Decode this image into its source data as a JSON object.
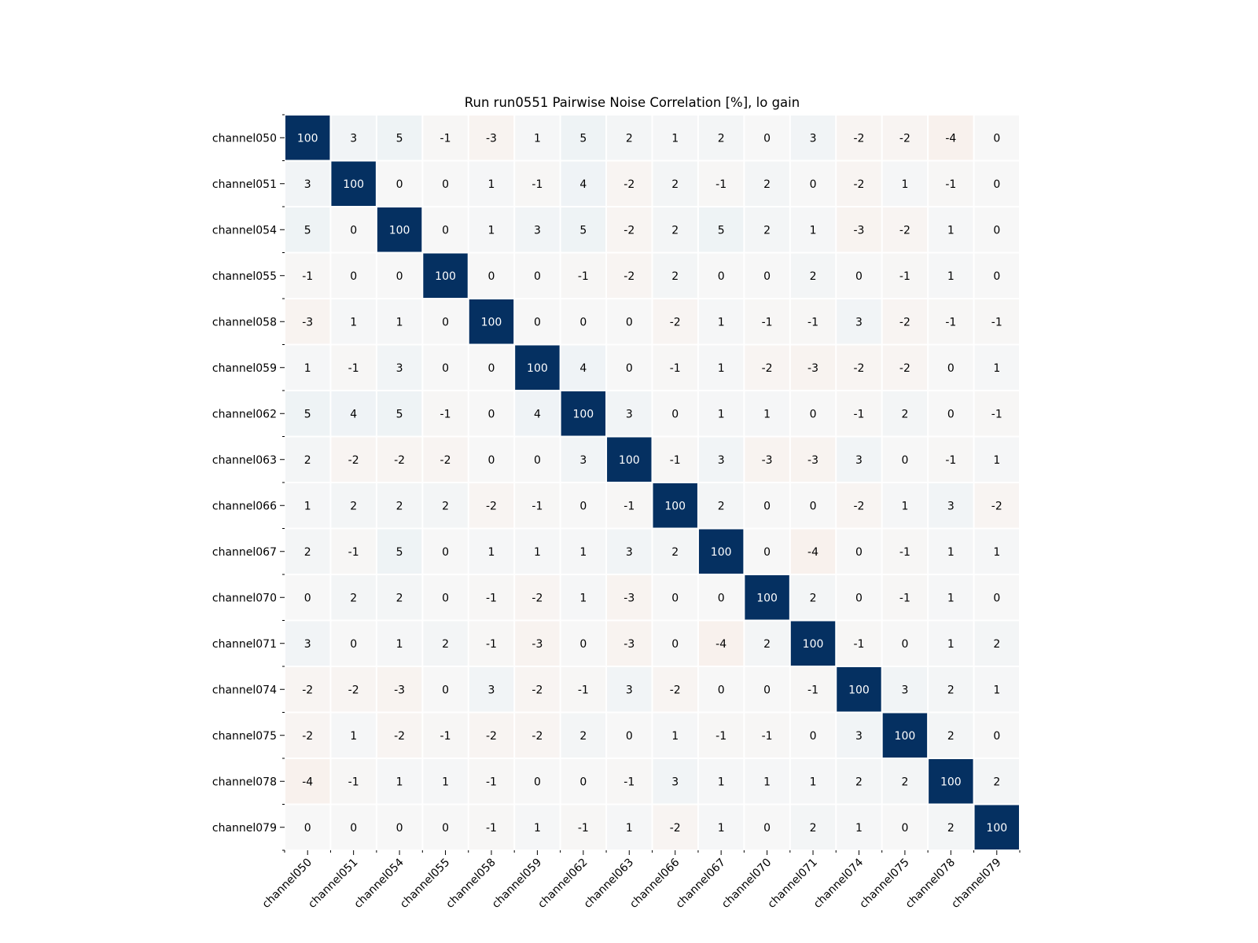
{
  "chart_data": {
    "type": "heatmap",
    "title": "Run run0551 Pairwise Noise Correlation [%], lo gain",
    "xlabel": "",
    "ylabel": "",
    "rows": [
      "channel050",
      "channel051",
      "channel054",
      "channel055",
      "channel058",
      "channel059",
      "channel062",
      "channel063",
      "channel066",
      "channel067",
      "channel070",
      "channel071",
      "channel074",
      "channel075",
      "channel078",
      "channel079"
    ],
    "columns": [
      "channel050",
      "channel051",
      "channel054",
      "channel055",
      "channel058",
      "channel059",
      "channel062",
      "channel063",
      "channel066",
      "channel067",
      "channel070",
      "channel071",
      "channel074",
      "channel075",
      "channel078",
      "channel079"
    ],
    "values": [
      [
        100,
        3,
        5,
        -1,
        -3,
        1,
        5,
        2,
        1,
        2,
        0,
        3,
        -2,
        -2,
        -4,
        0
      ],
      [
        3,
        100,
        0,
        0,
        1,
        -1,
        4,
        -2,
        2,
        -1,
        2,
        0,
        -2,
        1,
        -1,
        0
      ],
      [
        5,
        0,
        100,
        0,
        1,
        3,
        5,
        -2,
        2,
        5,
        2,
        1,
        -3,
        -2,
        1,
        0
      ],
      [
        -1,
        0,
        0,
        100,
        0,
        0,
        -1,
        -2,
        2,
        0,
        0,
        2,
        0,
        -1,
        1,
        0
      ],
      [
        -3,
        1,
        1,
        0,
        100,
        0,
        0,
        0,
        -2,
        1,
        -1,
        -1,
        3,
        -2,
        -1,
        -1
      ],
      [
        1,
        -1,
        3,
        0,
        0,
        100,
        4,
        0,
        -1,
        1,
        -2,
        -3,
        -2,
        -2,
        0,
        1
      ],
      [
        5,
        4,
        5,
        -1,
        0,
        4,
        100,
        3,
        0,
        1,
        1,
        0,
        -1,
        2,
        0,
        -1
      ],
      [
        2,
        -2,
        -2,
        -2,
        0,
        0,
        3,
        100,
        -1,
        3,
        -3,
        -3,
        3,
        0,
        -1,
        1
      ],
      [
        1,
        2,
        2,
        2,
        -2,
        -1,
        0,
        -1,
        100,
        2,
        0,
        0,
        -2,
        1,
        3,
        -2
      ],
      [
        2,
        -1,
        5,
        0,
        1,
        1,
        1,
        3,
        2,
        100,
        0,
        -4,
        0,
        -1,
        1,
        1
      ],
      [
        0,
        2,
        2,
        0,
        -1,
        -2,
        1,
        -3,
        0,
        0,
        100,
        2,
        0,
        -1,
        1,
        0
      ],
      [
        3,
        0,
        1,
        2,
        -1,
        -3,
        0,
        -3,
        0,
        -4,
        2,
        100,
        -1,
        0,
        1,
        2
      ],
      [
        -2,
        -2,
        -3,
        0,
        3,
        -2,
        -1,
        3,
        -2,
        0,
        0,
        -1,
        100,
        3,
        2,
        1
      ],
      [
        -2,
        1,
        -2,
        -1,
        -2,
        -2,
        2,
        0,
        1,
        -1,
        -1,
        0,
        3,
        100,
        2,
        0
      ],
      [
        -4,
        -1,
        1,
        1,
        -1,
        0,
        0,
        -1,
        3,
        1,
        1,
        1,
        2,
        2,
        100,
        2
      ],
      [
        0,
        0,
        0,
        0,
        -1,
        1,
        -1,
        1,
        -2,
        1,
        0,
        2,
        1,
        0,
        2,
        100
      ]
    ],
    "colormap": "RdBu diverging",
    "grid": false,
    "legend": "none"
  },
  "colors": {
    "max": "#053061",
    "neutral": "#f7f7f7",
    "min": "#67001f",
    "gap": "#ffffff",
    "light_text": "#ffffff",
    "dark_text": "#000000"
  }
}
